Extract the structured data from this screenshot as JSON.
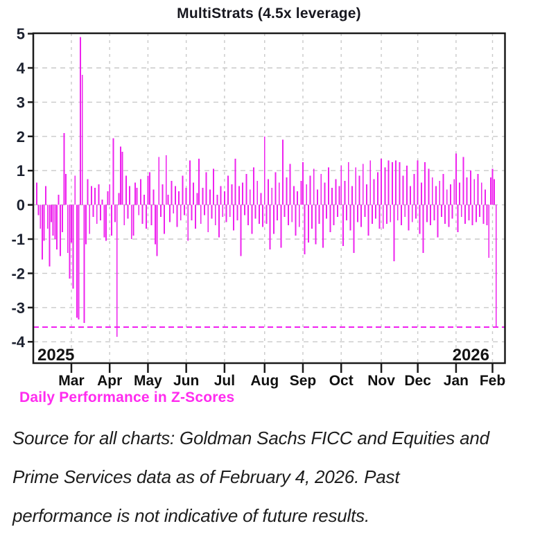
{
  "page": {
    "title": "MultiStrats (4.5x leverage)",
    "caption": "Daily Performance in Z-Scores",
    "year_left": "2025",
    "year_right": "2026"
  },
  "source": {
    "lines": [
      "Source for all charts: Goldman Sachs FICC and Equities and",
      "Prime Services data as of February 4, 2026. Past",
      "performance is not indicative of future results."
    ]
  },
  "colors": {
    "bar": "#ee22ee",
    "reference_line": "#f componen01ff0",
    "ref_line": "#f01ff0",
    "caption": "#ff2bef",
    "title": "#17171f",
    "axis_frame": "#1a1a1a",
    "gridline": "#c9c9c9",
    "tick_label": "#1d2230",
    "month_label": "#101010",
    "year_label": "#131313",
    "source_text": "#1d1d1d"
  },
  "chart_data": {
    "type": "bar",
    "title": "MultiStrats (4.5x leverage)",
    "xlabel": "",
    "ylabel": "Daily Performance in Z-Scores",
    "ylim": [
      -4.6,
      5
    ],
    "y_ticks": [
      5,
      4,
      3,
      2,
      1,
      0,
      -1,
      -2,
      -3,
      -4
    ],
    "grid": true,
    "legend_position": "none",
    "x_axis": {
      "start": "February 2025",
      "end": "February 4, 2026",
      "month_tick_labels": [
        "Mar",
        "Apr",
        "May",
        "Jun",
        "Jul",
        "Aug",
        "Sep",
        "Oct",
        "Nov",
        "Dec",
        "Jan",
        "Feb"
      ],
      "year_labels": [
        "2025",
        "2026"
      ]
    },
    "reference_line": {
      "value": -3.57,
      "style": "dashed"
    },
    "month_start_day_index": [
      19,
      40,
      61,
      82,
      103,
      125,
      146,
      167,
      189,
      209,
      230,
      250
    ],
    "series": [
      {
        "name": "Daily Performance in Z-Scores",
        "values": [
          0.65,
          -0.3,
          -0.7,
          -1.6,
          -1.05,
          0.55,
          -0.7,
          -1.8,
          -0.5,
          -0.9,
          -1.0,
          -1.3,
          0.3,
          -1.5,
          -0.8,
          2.1,
          0.9,
          -1.4,
          -2.15,
          -1.1,
          -2.45,
          0.85,
          -3.3,
          -3.35,
          4.9,
          3.8,
          -3.45,
          -1.15,
          0.75,
          -0.85,
          0.55,
          -0.35,
          0.5,
          -0.55,
          0.6,
          -0.45,
          0.15,
          -0.95,
          -1.05,
          0.4,
          0.6,
          -0.9,
          1.95,
          -0.5,
          -3.85,
          0.35,
          1.7,
          1.55,
          -0.6,
          0.85,
          -0.4,
          0.55,
          -1.0,
          -0.9,
          0.65,
          0.5,
          -0.3,
          0.75,
          -0.55,
          0.3,
          -0.7,
          0.85,
          0.95,
          -0.6,
          0.45,
          -1.15,
          -1.5,
          1.4,
          -0.35,
          0.6,
          -0.85,
          1.45,
          0.3,
          -0.5,
          0.7,
          -0.25,
          0.55,
          -0.65,
          0.4,
          -0.45,
          0.85,
          -0.3,
          0.5,
          -1.05,
          1.3,
          -0.45,
          0.65,
          -0.7,
          0.35,
          1.35,
          -0.55,
          0.5,
          -0.3,
          0.95,
          -0.8,
          0.45,
          -0.4,
          1.05,
          -0.6,
          0.3,
          -0.95,
          0.55,
          -0.35,
          0.4,
          -0.5,
          0.85,
          -0.35,
          0.6,
          -0.75,
          1.35,
          -0.45,
          0.55,
          -1.5,
          0.65,
          -0.3,
          0.9,
          -0.6,
          0.45,
          -0.85,
          1.1,
          -0.4,
          0.7,
          -0.55,
          0.35,
          -0.65,
          2.0,
          -0.55,
          0.75,
          -1.3,
          0.5,
          -0.85,
          0.95,
          -0.45,
          0.65,
          -1.25,
          1.9,
          -0.35,
          0.8,
          -0.6,
          1.2,
          -0.5,
          0.55,
          -0.9,
          0.4,
          -0.65,
          0.7,
          1.25,
          -1.45,
          0.6,
          -1.1,
          0.85,
          -0.7,
          1.05,
          -1.15,
          0.45,
          -0.55,
          0.9,
          -1.25,
          0.65,
          -0.4,
          1.1,
          -0.8,
          0.5,
          -0.6,
          0.75,
          -0.35,
          0.55,
          1.15,
          -1.2,
          0.7,
          -0.45,
          1.25,
          -0.75,
          0.55,
          -1.4,
          1.1,
          -0.5,
          0.85,
          -0.65,
          1.2,
          -0.35,
          0.6,
          -0.9,
          1.3,
          -0.55,
          0.75,
          -0.4,
          0.95,
          -0.7,
          1.35,
          -0.7,
          1.1,
          -0.55,
          1.3,
          -0.5,
          1.25,
          -1.65,
          1.3,
          -0.45,
          1.25,
          -0.6,
          0.85,
          -0.35,
          1.15,
          -0.75,
          0.55,
          -0.5,
          0.9,
          -0.4,
          1.3,
          -0.85,
          0.65,
          -1.4,
          1.25,
          -0.5,
          1.05,
          -0.6,
          0.8,
          -0.45,
          0.55,
          -0.95,
          0.7,
          -0.35,
          0.9,
          -0.55,
          0.45,
          -0.65,
          0.6,
          -0.4,
          0.75,
          1.5,
          -0.8,
          0.65,
          -0.35,
          1.4,
          -0.55,
          0.8,
          -0.45,
          1.0,
          -0.6,
          0.75,
          -0.5,
          0.9,
          -0.35,
          0.65,
          -0.55,
          0.45,
          -0.6,
          -1.55,
          0.8,
          1.05,
          0.75,
          -3.57
        ]
      }
    ]
  }
}
